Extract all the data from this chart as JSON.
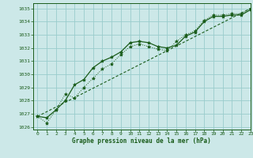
{
  "title": "Graphe pression niveau de la mer (hPa)",
  "bg_color": "#cce8e8",
  "grid_color": "#99cccc",
  "line_color": "#1a5c1a",
  "xlim": [
    -0.5,
    23
  ],
  "ylim": [
    1025.8,
    1035.4
  ],
  "yticks": [
    1026,
    1027,
    1028,
    1029,
    1030,
    1031,
    1032,
    1033,
    1034,
    1035
  ],
  "xticks": [
    0,
    1,
    2,
    3,
    4,
    5,
    6,
    7,
    8,
    9,
    10,
    11,
    12,
    13,
    14,
    15,
    16,
    17,
    18,
    19,
    20,
    21,
    22,
    23
  ],
  "series1_x": [
    0,
    1,
    2,
    3,
    4,
    5,
    6,
    7,
    8,
    9,
    10,
    11,
    12,
    13,
    14,
    15,
    16,
    17,
    18,
    19,
    20,
    21,
    22,
    23
  ],
  "series1_y": [
    1026.8,
    1026.7,
    1027.3,
    1028.0,
    1029.2,
    1029.6,
    1030.5,
    1031.0,
    1031.3,
    1031.7,
    1032.4,
    1032.5,
    1032.4,
    1032.1,
    1032.0,
    1032.2,
    1032.9,
    1033.2,
    1034.0,
    1034.4,
    1034.4,
    1034.5,
    1034.5,
    1034.9
  ],
  "series2_x": [
    0,
    1,
    2,
    3,
    4,
    5,
    6,
    7,
    8,
    9,
    10,
    11,
    12,
    13,
    14,
    15,
    16,
    17,
    18,
    19,
    20,
    21,
    22,
    23
  ],
  "series2_y": [
    1026.8,
    1026.3,
    1027.3,
    1028.5,
    1028.2,
    1029.0,
    1029.7,
    1030.4,
    1030.8,
    1031.5,
    1032.1,
    1032.3,
    1032.1,
    1031.9,
    1031.8,
    1032.5,
    1033.0,
    1033.3,
    1034.1,
    1034.5,
    1034.5,
    1034.6,
    1034.6,
    1035.0
  ],
  "series3_x": [
    0,
    23
  ],
  "series3_y": [
    1026.8,
    1035.0
  ],
  "figsize": [
    3.2,
    2.0
  ],
  "dpi": 100
}
